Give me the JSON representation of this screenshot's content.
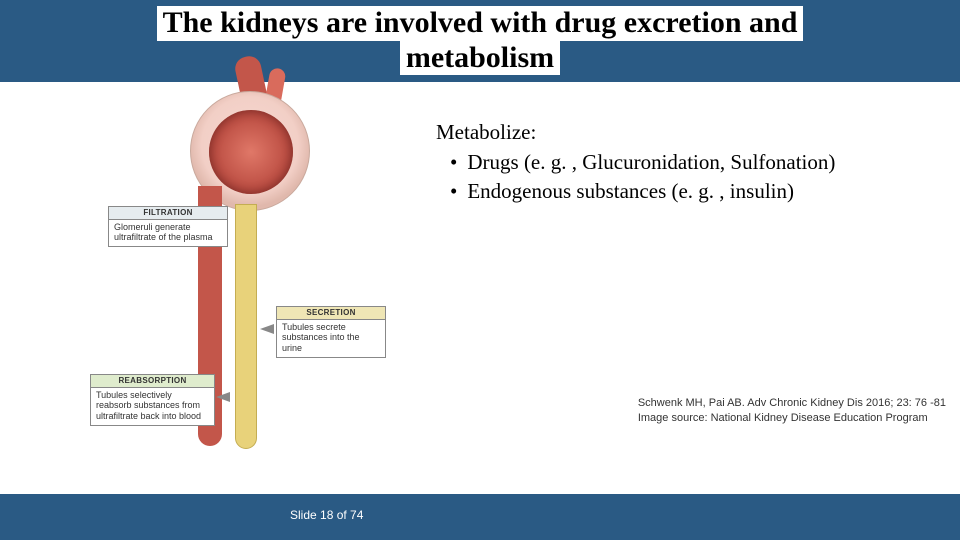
{
  "title": {
    "line1": "The kidneys are involved with drug excretion and",
    "line2": "metabolism"
  },
  "colors": {
    "header_bg": "#2a5a84",
    "header_text_bg": "#ffffff",
    "header_text_color": "#000000",
    "footer_bg": "#2a5a84",
    "footer_text": "#ffffff",
    "body_bg": "#ffffff",
    "citation_color": "#333333"
  },
  "body": {
    "heading": "Metabolize:",
    "bullets": [
      "Drugs (e. g. , Glucuronidation, Sulfonation)",
      "Endogenous substances (e. g. , insulin)"
    ],
    "font_size_pt": 21
  },
  "diagram": {
    "type": "infographic",
    "description": "Nephron schematic showing glomerulus with afferent/efferent vessels and tubule, with three process callouts",
    "glomerulus_color": "#c3564a",
    "capsule_color": "#f2cfc6",
    "tubule_color": "#e8d27a",
    "vessel_color": "#c3564a",
    "labels": {
      "filtration": {
        "header": "FILTRATION",
        "text": "Glomeruli generate ultrafiltrate of the plasma",
        "header_bg": "#e6ecef"
      },
      "secretion": {
        "header": "SECRETION",
        "text": "Tubules secrete substances into the urine",
        "header_bg": "#efe6b5"
      },
      "reabsorption": {
        "header": "REABSORPTION",
        "text": "Tubules selectively reabsorb substances from ultrafiltrate back into blood",
        "header_bg": "#dfeccd"
      }
    }
  },
  "citation": {
    "line1": "Schwenk MH, Pai AB. Adv Chronic Kidney Dis 2016; 23: 76 -81",
    "line2": "Image source: National Kidney Disease Education Program"
  },
  "footer": {
    "slide_label": "Slide 18 of 74",
    "current": 18,
    "total": 74
  }
}
